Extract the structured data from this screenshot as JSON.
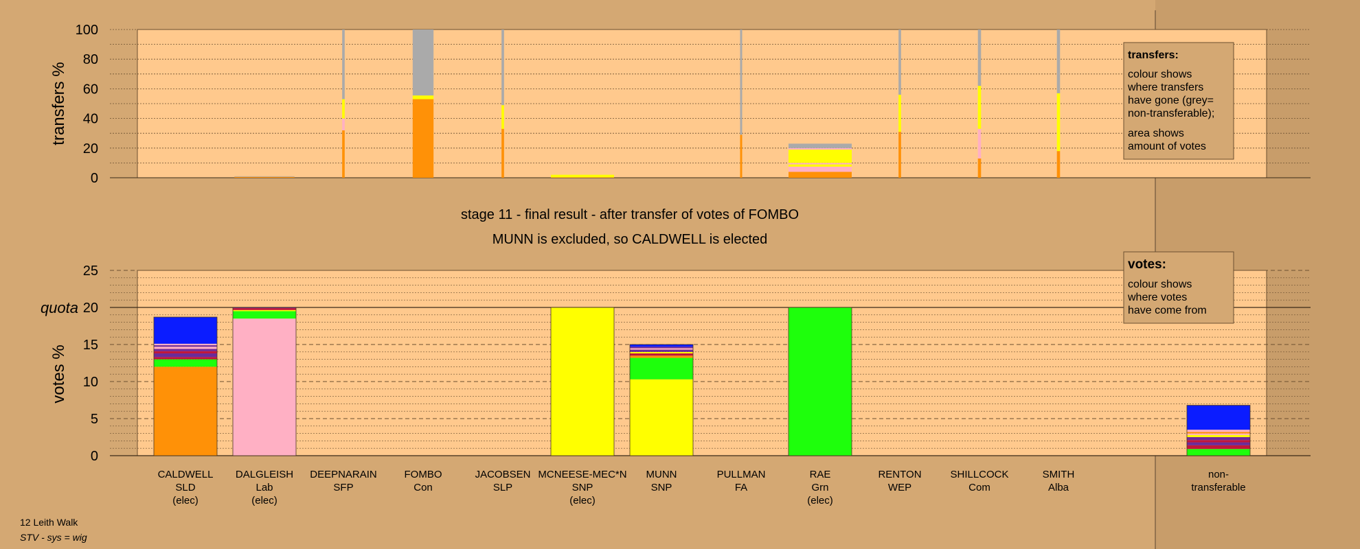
{
  "footer": {
    "ward": "12 Leith Walk",
    "system": "STV - sys = wig"
  },
  "colors": {
    "background": "#d4a873",
    "plot_area": "#ffc98d",
    "side_area": "#c89d6a",
    "SLD": "#ff9107",
    "Lab": "#ffb0c4",
    "SNP": "#ffff00",
    "Grn": "#1eff0c",
    "Con": "#0b1cff",
    "Alba": "#6b2a9a",
    "Com": "#c0163a",
    "nontransferable": "#aaaaaa"
  },
  "chart_data": [
    {
      "type": "bar",
      "name": "transfers",
      "ylabel": "transfers %",
      "ylim": [
        0,
        100
      ],
      "yticks": [
        0,
        20,
        40,
        60,
        80,
        100
      ],
      "legend": {
        "position": "top-right",
        "title": "transfers:",
        "lines": [
          "colour shows",
          "where transfers",
          "have gone (grey=",
          "non-transferable);",
          "area shows",
          "amount of votes"
        ]
      },
      "bar_width_meaning": "amount of votes",
      "categories": [
        "DALGLEISH",
        "DEEPNARAIN",
        "FOMBO",
        "JACOBSEN",
        "MCNEESE-MEC*N",
        "PULLMAN",
        "RAE",
        "RENTON",
        "SHILLCOCK",
        "SMITH"
      ],
      "bars": [
        {
          "category": "DALGLEISH",
          "width_share": 0.95,
          "segments": [
            {
              "party": "SLD",
              "value": 0.6
            },
            {
              "party": "nontransferable",
              "value": 0.4
            }
          ]
        },
        {
          "category": "DEEPNARAIN",
          "width_share": 0.04,
          "segments": [
            {
              "party": "SLD",
              "value": 32
            },
            {
              "party": "Lab",
              "value": 8
            },
            {
              "party": "SNP",
              "value": 13
            },
            {
              "party": "nontransferable",
              "value": 47
            }
          ]
        },
        {
          "category": "FOMBO",
          "width_share": 0.33,
          "segments": [
            {
              "party": "SLD",
              "value": 53
            },
            {
              "party": "SNP",
              "value": 2.5
            },
            {
              "party": "nontransferable",
              "value": 44.5
            }
          ]
        },
        {
          "category": "JACOBSEN",
          "width_share": 0.04,
          "segments": [
            {
              "party": "SLD",
              "value": 33
            },
            {
              "party": "SNP",
              "value": 16
            },
            {
              "party": "nontransferable",
              "value": 51
            }
          ]
        },
        {
          "category": "MCNEESE-MEC*N",
          "width_share": 1.0,
          "segments": [
            {
              "party": "SLD",
              "value": 0.3
            },
            {
              "party": "SNP",
              "value": 1.7
            }
          ]
        },
        {
          "category": "PULLMAN",
          "width_share": 0.025,
          "segments": [
            {
              "party": "SLD",
              "value": 29
            },
            {
              "party": "nontransferable",
              "value": 71
            }
          ]
        },
        {
          "category": "RAE",
          "width_share": 1.0,
          "segments": [
            {
              "party": "SLD",
              "value": 4
            },
            {
              "party": "Lab",
              "value": 3.5
            },
            {
              "party": "SNP",
              "value": 1.5
            },
            {
              "party": "Lab",
              "value": 1
            },
            {
              "party": "SNP",
              "value": 9
            },
            {
              "party": "Lab",
              "value": 1
            },
            {
              "party": "nontransferable",
              "value": 3
            }
          ]
        },
        {
          "category": "RENTON",
          "width_share": 0.04,
          "segments": [
            {
              "party": "SLD",
              "value": 31
            },
            {
              "party": "SNP",
              "value": 25
            },
            {
              "party": "nontransferable",
              "value": 44
            }
          ]
        },
        {
          "category": "SHILLCOCK",
          "width_share": 0.05,
          "segments": [
            {
              "party": "SLD",
              "value": 13
            },
            {
              "party": "Lab",
              "value": 20
            },
            {
              "party": "SNP",
              "value": 29
            },
            {
              "party": "nontransferable",
              "value": 38
            }
          ]
        },
        {
          "category": "SMITH",
          "width_share": 0.05,
          "segments": [
            {
              "party": "SLD",
              "value": 18
            },
            {
              "party": "SNP",
              "value": 39
            },
            {
              "party": "nontransferable",
              "value": 43
            }
          ]
        }
      ]
    },
    {
      "type": "bar",
      "name": "votes",
      "title_lines": [
        "stage 11 - final result - after transfer of votes of FOMBO",
        "MUNN is excluded, so CALDWELL is elected"
      ],
      "ylabel": "votes %",
      "ylim": [
        0,
        25
      ],
      "yticks": [
        0,
        5,
        10,
        15,
        20,
        25
      ],
      "quota": 20,
      "quota_label": "quota",
      "legend": {
        "position": "top-right",
        "title": "votes:",
        "lines": [
          "colour shows",
          "where votes",
          "have come from"
        ]
      },
      "candidates": [
        {
          "name": "CALDWELL",
          "party": "SLD",
          "status": "(elec)",
          "segments": [
            {
              "party": "SLD",
              "value": 12
            },
            {
              "party": "Grn",
              "value": 1
            },
            {
              "party": "Com",
              "value": 0.3
            },
            {
              "party": "Alba",
              "value": 0.5
            },
            {
              "party": "Com",
              "value": 0.3
            },
            {
              "party": "Alba",
              "value": 0.3
            },
            {
              "party": "Lab",
              "value": 0.3
            },
            {
              "party": "Alba",
              "value": 0.2
            },
            {
              "party": "Lab",
              "value": 0.2
            },
            {
              "party": "Con",
              "value": 3.6
            }
          ]
        },
        {
          "name": "DALGLEISH",
          "party": "Lab",
          "status": "(elec)",
          "segments": [
            {
              "party": "Lab",
              "value": 18.5
            },
            {
              "party": "Grn",
              "value": 1.0
            },
            {
              "party": "SNP",
              "value": 0.15
            },
            {
              "party": "Com",
              "value": 0.25
            },
            {
              "party": "Alba",
              "value": 0.1
            }
          ]
        },
        {
          "name": "DEEPNARAIN",
          "party": "SFP",
          "status": "",
          "segments": []
        },
        {
          "name": "FOMBO",
          "party": "Con",
          "status": "",
          "segments": []
        },
        {
          "name": "JACOBSEN",
          "party": "SLP",
          "status": "",
          "segments": []
        },
        {
          "name": "MCNEESE-MEC*N",
          "party": "SNP",
          "status": "(elec)",
          "segments": [
            {
              "party": "SNP",
              "value": 20
            }
          ]
        },
        {
          "name": "MUNN",
          "party": "SNP",
          "status": "",
          "segments": [
            {
              "party": "SNP",
              "value": 10.3
            },
            {
              "party": "Grn",
              "value": 2.9
            },
            {
              "party": "SLD",
              "value": 0.3
            },
            {
              "party": "Com",
              "value": 0.3
            },
            {
              "party": "SNP",
              "value": 0.2
            },
            {
              "party": "Alba",
              "value": 0.3
            },
            {
              "party": "Lab",
              "value": 0.2
            },
            {
              "party": "Alba",
              "value": 0.2
            },
            {
              "party": "Con",
              "value": 0.3
            }
          ]
        },
        {
          "name": "PULLMAN",
          "party": "FA",
          "status": "",
          "segments": []
        },
        {
          "name": "RAE",
          "party": "Grn",
          "status": "(elec)",
          "segments": [
            {
              "party": "Grn",
              "value": 20
            }
          ]
        },
        {
          "name": "RENTON",
          "party": "WEP",
          "status": "",
          "segments": []
        },
        {
          "name": "SHILLCOCK",
          "party": "Com",
          "status": "",
          "segments": []
        },
        {
          "name": "SMITH",
          "party": "Alba",
          "status": "",
          "segments": []
        },
        {
          "name": "non-",
          "party": "transferable",
          "status": "",
          "segments": [
            {
              "party": "Grn",
              "value": 0.9
            },
            {
              "party": "Com",
              "value": 0.5
            },
            {
              "party": "Alba",
              "value": 0.4
            },
            {
              "party": "Com",
              "value": 0.3
            },
            {
              "party": "Alba",
              "value": 0.4
            },
            {
              "party": "SNP",
              "value": 0.3
            },
            {
              "party": "Lab",
              "value": 0.2
            },
            {
              "party": "SLD",
              "value": 0.2
            },
            {
              "party": "Lab",
              "value": 0.3
            },
            {
              "party": "Con",
              "value": 3.3
            }
          ]
        }
      ]
    }
  ]
}
